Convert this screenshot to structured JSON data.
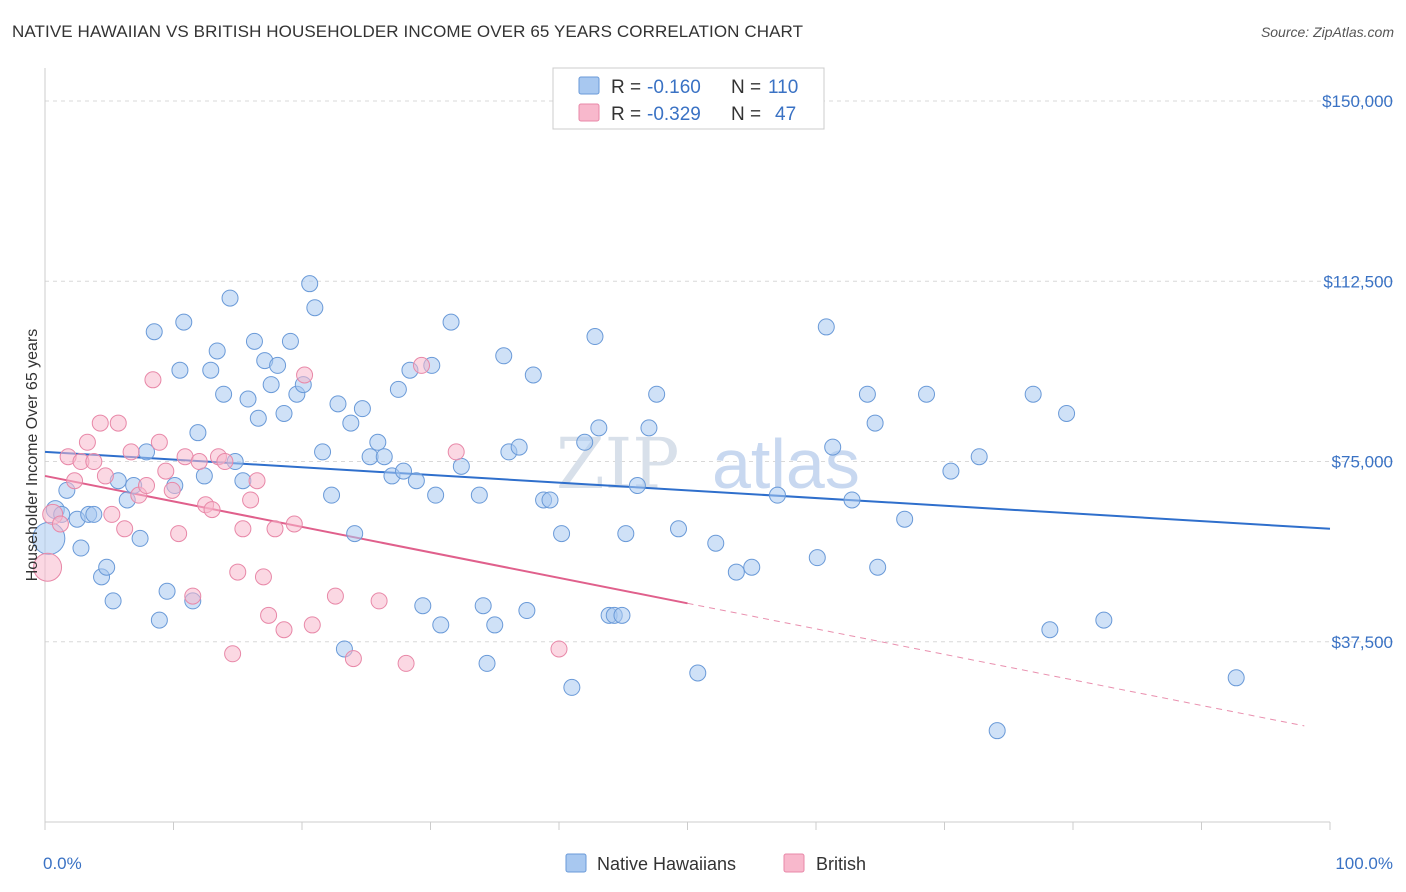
{
  "title": "NATIVE HAWAIIAN VS BRITISH HOUSEHOLDER INCOME OVER 65 YEARS CORRELATION CHART",
  "source": "Source: ZipAtlas.com",
  "watermark": {
    "part1": "ZIP",
    "part2": "atlas"
  },
  "legend": {
    "rows": [
      {
        "r_label": "R =",
        "r_value": "-0.160",
        "n_label": "N =",
        "n_value": "110",
        "color": "#a8c8f0",
        "stroke": "#6a9ad8"
      },
      {
        "r_label": "R =",
        "r_value": "-0.329",
        "n_label": "N =",
        "n_value": "47",
        "color": "#f8b8cc",
        "stroke": "#e888a8"
      }
    ]
  },
  "bottom_legend": [
    {
      "label": "Native Hawaiians",
      "color": "#a8c8f0",
      "stroke": "#6a9ad8"
    },
    {
      "label": "British",
      "color": "#f8b8cc",
      "stroke": "#e888a8"
    }
  ],
  "chart_data": {
    "type": "scatter",
    "title": "NATIVE HAWAIIAN VS BRITISH HOUSEHOLDER INCOME OVER 65 YEARS CORRELATION CHART",
    "xlabel": "",
    "ylabel": "Householder Income Over 65 years",
    "xlim": [
      0,
      100
    ],
    "ylim": [
      0,
      155000
    ],
    "x_tick_labels": [
      "0.0%",
      "100.0%"
    ],
    "y_ticks": [
      37500,
      75000,
      112500,
      150000
    ],
    "y_tick_labels": [
      "$37,500",
      "$75,000",
      "$112,500",
      "$150,000"
    ],
    "grid": true,
    "legend_position": "top-center",
    "series": [
      {
        "name": "Native Hawaiians",
        "color": "#6a9ad8",
        "fill": "#a8c8f0",
        "trend": {
          "x": [
            0,
            100
          ],
          "y": [
            77000,
            61000
          ],
          "color": "#2f6fcc"
        },
        "points": [
          [
            0.3,
            59000,
            16
          ],
          [
            0.8,
            65000,
            9
          ],
          [
            1.3,
            64000,
            8
          ],
          [
            1.7,
            69000,
            8
          ],
          [
            2.5,
            63000,
            8
          ],
          [
            2.8,
            57000,
            8
          ],
          [
            3.4,
            64000,
            8
          ],
          [
            3.8,
            64000,
            8
          ],
          [
            4.4,
            51000,
            8
          ],
          [
            4.8,
            53000,
            8
          ],
          [
            5.3,
            46000,
            8
          ],
          [
            5.7,
            71000,
            8
          ],
          [
            6.4,
            67000,
            8
          ],
          [
            6.9,
            70000,
            8
          ],
          [
            7.4,
            59000,
            8
          ],
          [
            7.9,
            77000,
            8
          ],
          [
            8.5,
            102000,
            8
          ],
          [
            8.9,
            42000,
            8
          ],
          [
            9.5,
            48000,
            8
          ],
          [
            10.1,
            70000,
            8
          ],
          [
            10.5,
            94000,
            8
          ],
          [
            10.8,
            104000,
            8
          ],
          [
            11.5,
            46000,
            8
          ],
          [
            11.9,
            81000,
            8
          ],
          [
            12.4,
            72000,
            8
          ],
          [
            12.9,
            94000,
            8
          ],
          [
            13.4,
            98000,
            8
          ],
          [
            13.9,
            89000,
            8
          ],
          [
            14.4,
            109000,
            8
          ],
          [
            14.8,
            75000,
            8
          ],
          [
            15.4,
            71000,
            8
          ],
          [
            15.8,
            88000,
            8
          ],
          [
            16.3,
            100000,
            8
          ],
          [
            16.6,
            84000,
            8
          ],
          [
            17.1,
            96000,
            8
          ],
          [
            17.6,
            91000,
            8
          ],
          [
            18.1,
            95000,
            8
          ],
          [
            18.6,
            85000,
            8
          ],
          [
            19.1,
            100000,
            8
          ],
          [
            19.6,
            89000,
            8
          ],
          [
            20.1,
            91000,
            8
          ],
          [
            20.6,
            112000,
            8
          ],
          [
            21.0,
            107000,
            8
          ],
          [
            21.6,
            77000,
            8
          ],
          [
            22.3,
            68000,
            8
          ],
          [
            22.8,
            87000,
            8
          ],
          [
            23.3,
            36000,
            8
          ],
          [
            23.8,
            83000,
            8
          ],
          [
            24.1,
            60000,
            8
          ],
          [
            24.7,
            86000,
            8
          ],
          [
            25.3,
            76000,
            8
          ],
          [
            25.9,
            79000,
            8
          ],
          [
            26.4,
            76000,
            8
          ],
          [
            27.0,
            72000,
            8
          ],
          [
            27.5,
            90000,
            8
          ],
          [
            27.9,
            73000,
            8
          ],
          [
            28.4,
            94000,
            8
          ],
          [
            28.9,
            71000,
            8
          ],
          [
            29.4,
            45000,
            8
          ],
          [
            30.1,
            95000,
            8
          ],
          [
            30.4,
            68000,
            8
          ],
          [
            30.8,
            41000,
            8
          ],
          [
            31.6,
            104000,
            8
          ],
          [
            32.4,
            74000,
            8
          ],
          [
            33.8,
            68000,
            8
          ],
          [
            34.1,
            45000,
            8
          ],
          [
            34.4,
            33000,
            8
          ],
          [
            35.0,
            41000,
            8
          ],
          [
            35.7,
            97000,
            8
          ],
          [
            36.1,
            77000,
            8
          ],
          [
            36.9,
            78000,
            8
          ],
          [
            37.5,
            44000,
            8
          ],
          [
            38.0,
            93000,
            8
          ],
          [
            38.8,
            67000,
            8
          ],
          [
            39.3,
            67000,
            8
          ],
          [
            40.2,
            60000,
            8
          ],
          [
            41.0,
            28000,
            8
          ],
          [
            42.0,
            79000,
            8
          ],
          [
            42.8,
            101000,
            8
          ],
          [
            43.1,
            82000,
            8
          ],
          [
            43.9,
            43000,
            8
          ],
          [
            44.3,
            43000,
            8
          ],
          [
            44.9,
            43000,
            8
          ],
          [
            45.2,
            60000,
            8
          ],
          [
            46.1,
            70000,
            8
          ],
          [
            47.0,
            82000,
            8
          ],
          [
            47.6,
            89000,
            8
          ],
          [
            49.3,
            61000,
            8
          ],
          [
            50.8,
            31000,
            8
          ],
          [
            52.2,
            58000,
            8
          ],
          [
            53.8,
            52000,
            8
          ],
          [
            55.0,
            53000,
            8
          ],
          [
            57.0,
            68000,
            8
          ],
          [
            60.1,
            55000,
            8
          ],
          [
            60.8,
            103000,
            8
          ],
          [
            61.3,
            78000,
            8
          ],
          [
            62.8,
            67000,
            8
          ],
          [
            64.0,
            89000,
            8
          ],
          [
            64.6,
            83000,
            8
          ],
          [
            64.8,
            53000,
            8
          ],
          [
            66.9,
            63000,
            8
          ],
          [
            68.6,
            89000,
            8
          ],
          [
            70.5,
            73000,
            8
          ],
          [
            72.7,
            76000,
            8
          ],
          [
            76.9,
            89000,
            8
          ],
          [
            78.2,
            40000,
            8
          ],
          [
            79.5,
            85000,
            8
          ],
          [
            82.4,
            42000,
            8
          ],
          [
            92.7,
            30000,
            8
          ],
          [
            74.1,
            19000,
            8
          ]
        ]
      },
      {
        "name": "British",
        "color": "#e888a8",
        "fill": "#f8b8cc",
        "trend": {
          "x": [
            0,
            50
          ],
          "y": [
            72000,
            45500
          ],
          "color": "#e0608c"
        },
        "trend_extension": {
          "x": [
            50,
            98
          ],
          "y": [
            45500,
            20000
          ],
          "dashed": true
        },
        "points": [
          [
            0.2,
            53000,
            14
          ],
          [
            0.6,
            64000,
            10
          ],
          [
            1.2,
            62000,
            8
          ],
          [
            1.8,
            76000,
            8
          ],
          [
            2.3,
            71000,
            8
          ],
          [
            2.8,
            75000,
            8
          ],
          [
            3.3,
            79000,
            8
          ],
          [
            3.8,
            75000,
            8
          ],
          [
            4.3,
            83000,
            8
          ],
          [
            4.7,
            72000,
            8
          ],
          [
            5.2,
            64000,
            8
          ],
          [
            5.7,
            83000,
            8
          ],
          [
            6.2,
            61000,
            8
          ],
          [
            6.7,
            77000,
            8
          ],
          [
            7.3,
            68000,
            8
          ],
          [
            7.9,
            70000,
            8
          ],
          [
            8.4,
            92000,
            8
          ],
          [
            8.9,
            79000,
            8
          ],
          [
            9.4,
            73000,
            8
          ],
          [
            9.9,
            69000,
            8
          ],
          [
            10.4,
            60000,
            8
          ],
          [
            10.9,
            76000,
            8
          ],
          [
            11.5,
            47000,
            8
          ],
          [
            12.0,
            75000,
            8
          ],
          [
            12.5,
            66000,
            8
          ],
          [
            13.0,
            65000,
            8
          ],
          [
            13.5,
            76000,
            8
          ],
          [
            14.0,
            75000,
            8
          ],
          [
            14.6,
            35000,
            8
          ],
          [
            15.0,
            52000,
            8
          ],
          [
            15.4,
            61000,
            8
          ],
          [
            16.0,
            67000,
            8
          ],
          [
            16.5,
            71000,
            8
          ],
          [
            17.0,
            51000,
            8
          ],
          [
            17.4,
            43000,
            8
          ],
          [
            17.9,
            61000,
            8
          ],
          [
            18.6,
            40000,
            8
          ],
          [
            19.4,
            62000,
            8
          ],
          [
            20.2,
            93000,
            8
          ],
          [
            20.8,
            41000,
            8
          ],
          [
            22.6,
            47000,
            8
          ],
          [
            24.0,
            34000,
            8
          ],
          [
            26.0,
            46000,
            8
          ],
          [
            28.1,
            33000,
            8
          ],
          [
            29.3,
            95000,
            8
          ],
          [
            32.0,
            77000,
            8
          ],
          [
            40.0,
            36000,
            8
          ]
        ]
      }
    ]
  }
}
